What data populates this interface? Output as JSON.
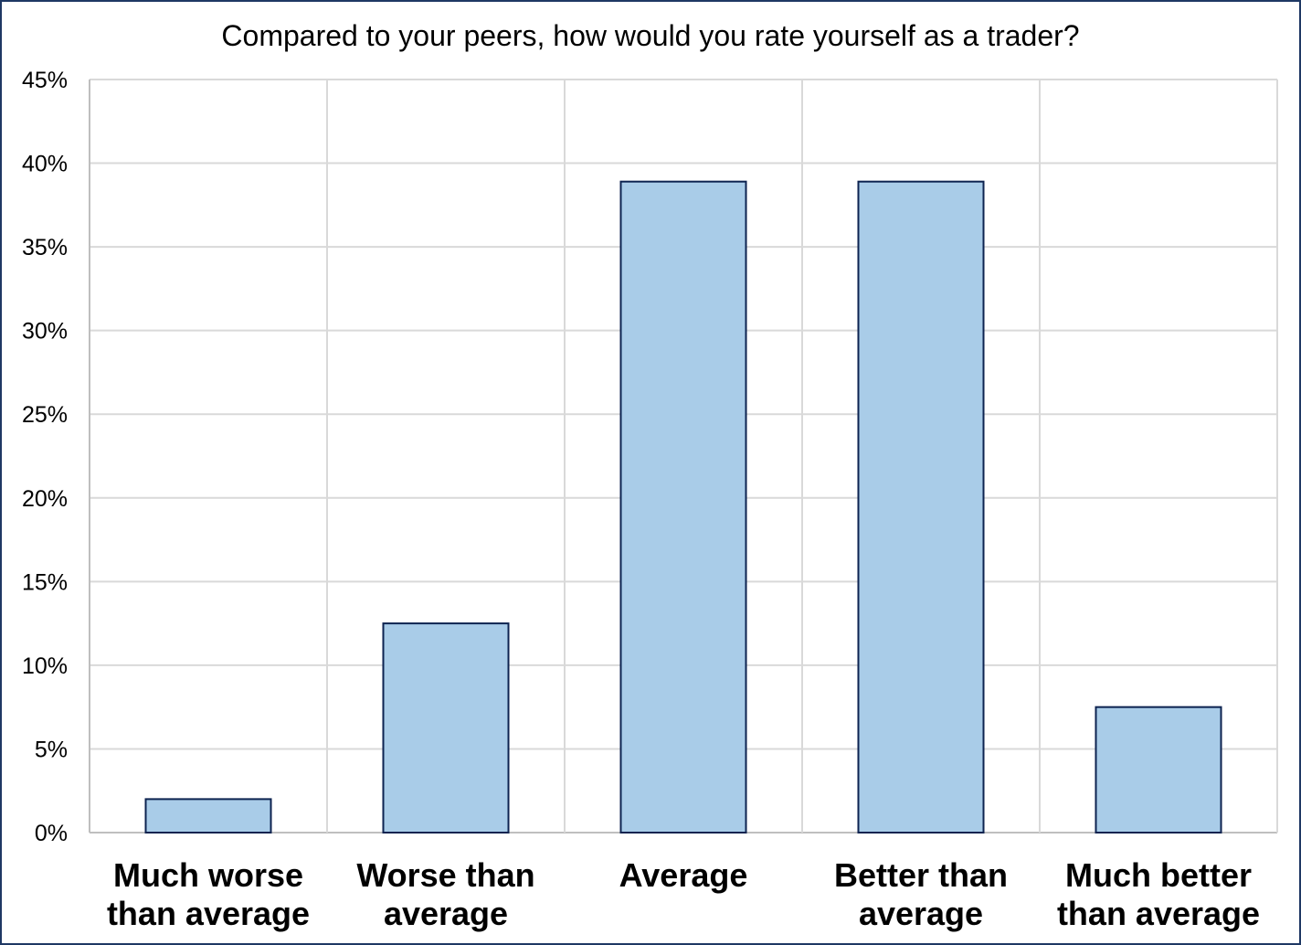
{
  "chart_data": {
    "type": "bar",
    "title": "Compared to your peers, how would you rate yourself as a trader?",
    "xlabel": "",
    "ylabel": "",
    "categories": [
      [
        "Much worse",
        "than average"
      ],
      [
        "Worse than",
        "average"
      ],
      [
        "Average"
      ],
      [
        "Better than",
        "average"
      ],
      [
        "Much better",
        "than average"
      ]
    ],
    "values": [
      2.0,
      12.5,
      38.9,
      38.9,
      7.5
    ],
    "ylim": [
      0,
      45
    ],
    "yticks": [
      0,
      5,
      10,
      15,
      20,
      25,
      30,
      35,
      40,
      45
    ],
    "ytick_labels": [
      "0%",
      "5%",
      "10%",
      "15%",
      "20%",
      "25%",
      "30%",
      "35%",
      "40%",
      "45%"
    ],
    "grid": true,
    "legend": "none",
    "colors": {
      "bar_fill": "#a9cce8",
      "bar_stroke": "#0d2350",
      "grid": "#d9d9d9",
      "axis": "#bfbfbf",
      "frame": "#1f3864"
    }
  }
}
